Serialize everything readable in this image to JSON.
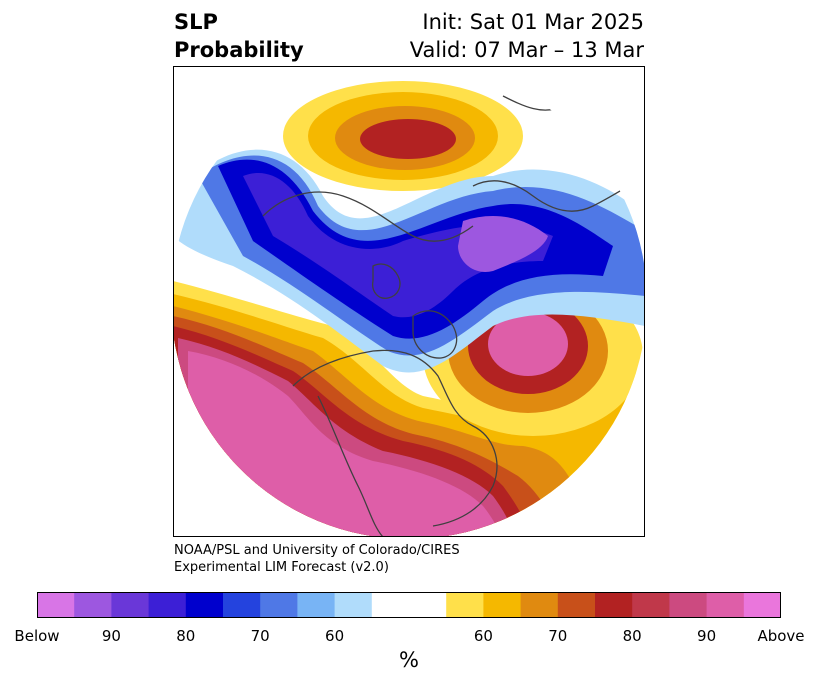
{
  "title": {
    "variable_line1": "SLP",
    "variable_line2": "Probability",
    "init": "Init: Sat 01 Mar 2025",
    "valid": "Valid: 07 Mar – 13 Mar"
  },
  "credit": {
    "line1": "NOAA/PSL and University of Colorado/CIRES",
    "line2": "Experimental LIM Forecast (v2.0)"
  },
  "colorbar": {
    "unit": "%",
    "colors": [
      "#d875e6",
      "#9d57e0",
      "#6a37d8",
      "#3c1fd6",
      "#0000cd",
      "#2443de",
      "#4f78e6",
      "#78b4f5",
      "#b0dcfb",
      "#ffffff",
      "#ffffff",
      "#ffe04a",
      "#f5b800",
      "#e08a10",
      "#c8501a",
      "#b22222",
      "#c0384a",
      "#cc4a80",
      "#de5ea8",
      "#ea76dc"
    ],
    "ticks": [
      "Below",
      "90",
      "80",
      "70",
      "60",
      "",
      "60",
      "70",
      "80",
      "90",
      "Above"
    ]
  },
  "map": {
    "below_colors": {
      "p90": "#9d57e0",
      "p80": "#3c1fd6",
      "p70": "#0000cd",
      "p60": "#4f78e6",
      "p50": "#b0dcfb"
    },
    "above_colors": {
      "p50": "#ffe04a",
      "p60": "#f5b800",
      "p70": "#e08a10",
      "p80": "#c8501a",
      "p90": "#b22222",
      "p95": "#cc4a80",
      "p99": "#de5ea8"
    }
  }
}
